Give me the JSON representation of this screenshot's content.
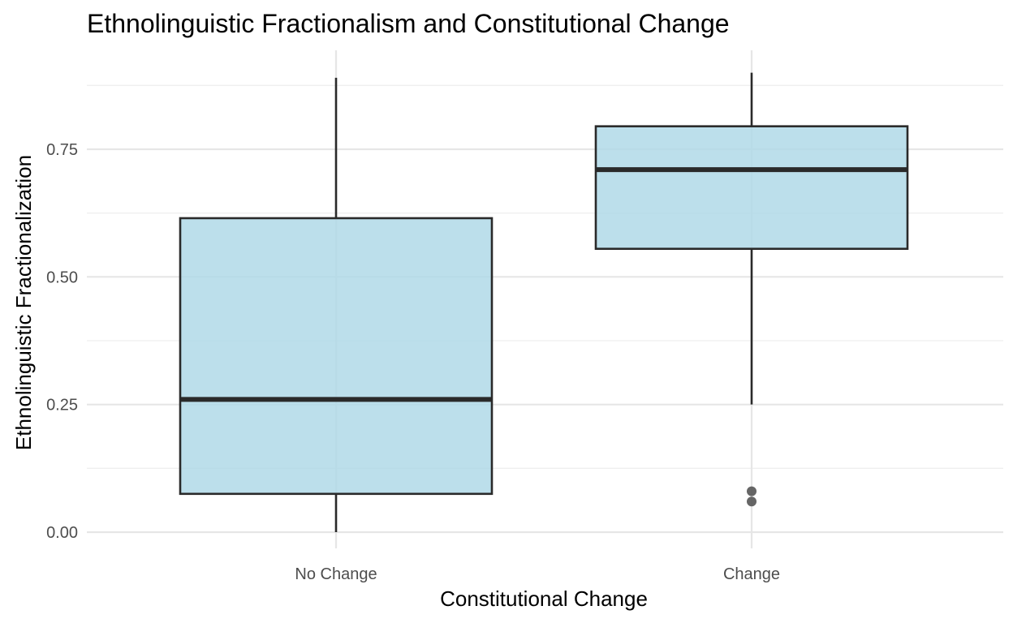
{
  "chart_data": {
    "type": "boxplot",
    "title": "Ethnolinguistic Fractionalism and Constitutional Change",
    "xlabel": "Constitutional Change",
    "ylabel": "Ethnolinguistic Fractionalization",
    "categories": [
      "No Change",
      "Change"
    ],
    "y_ticks": [
      "0.00",
      "0.25",
      "0.50",
      "0.75"
    ],
    "y_tick_values": [
      0,
      0.25,
      0.5,
      0.75
    ],
    "ylim": [
      -0.04,
      0.94
    ],
    "grid": true,
    "colors": {
      "box_fill": "#add8e6",
      "box_stroke": "#2a2a2a",
      "outlier": "#555555"
    },
    "boxes": [
      {
        "category": "No Change",
        "whisker_low": 0.0,
        "q1": 0.075,
        "median": 0.26,
        "q3": 0.615,
        "whisker_high": 0.89,
        "outliers": []
      },
      {
        "category": "Change",
        "whisker_low": 0.25,
        "q1": 0.555,
        "median": 0.71,
        "q3": 0.795,
        "whisker_high": 0.9,
        "outliers": [
          0.08,
          0.06
        ]
      }
    ]
  }
}
